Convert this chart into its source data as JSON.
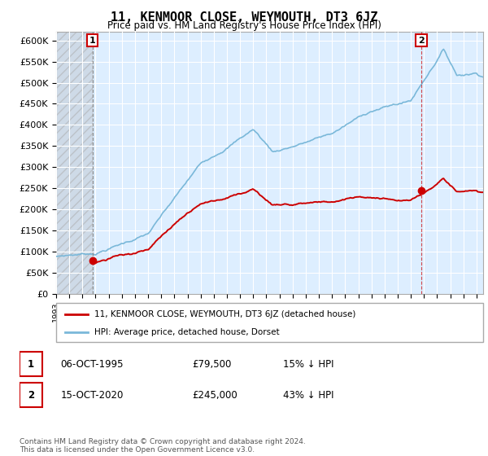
{
  "title": "11, KENMOOR CLOSE, WEYMOUTH, DT3 6JZ",
  "subtitle": "Price paid vs. HM Land Registry's House Price Index (HPI)",
  "ylim": [
    0,
    620000
  ],
  "yticks": [
    0,
    50000,
    100000,
    150000,
    200000,
    250000,
    300000,
    350000,
    400000,
    450000,
    500000,
    550000,
    600000
  ],
  "ytick_labels": [
    "£0",
    "£50K",
    "£100K",
    "£150K",
    "£200K",
    "£250K",
    "£300K",
    "£350K",
    "£400K",
    "£450K",
    "£500K",
    "£550K",
    "£600K"
  ],
  "xlim_start": 1993.0,
  "xlim_end": 2025.5,
  "sale1_year": 1995.77,
  "sale1_price": 79500,
  "sale2_year": 2020.79,
  "sale2_price": 245000,
  "hpi_color": "#7ab8d9",
  "property_color": "#cc0000",
  "hpi_linewidth": 1.2,
  "property_linewidth": 1.4,
  "legend_label1": "11, KENMOOR CLOSE, WEYMOUTH, DT3 6JZ (detached house)",
  "legend_label2": "HPI: Average price, detached house, Dorset",
  "note1_num": "1",
  "note1_date": "06-OCT-1995",
  "note1_price": "£79,500",
  "note1_hpi": "15% ↓ HPI",
  "note2_num": "2",
  "note2_date": "15-OCT-2020",
  "note2_price": "£245,000",
  "note2_hpi": "43% ↓ HPI",
  "footer": "Contains HM Land Registry data © Crown copyright and database right 2024.\nThis data is licensed under the Open Government Licence v3.0.",
  "bg_color": "#ffffff",
  "plot_bg_color": "#ddeeff",
  "grid_color": "#ffffff"
}
